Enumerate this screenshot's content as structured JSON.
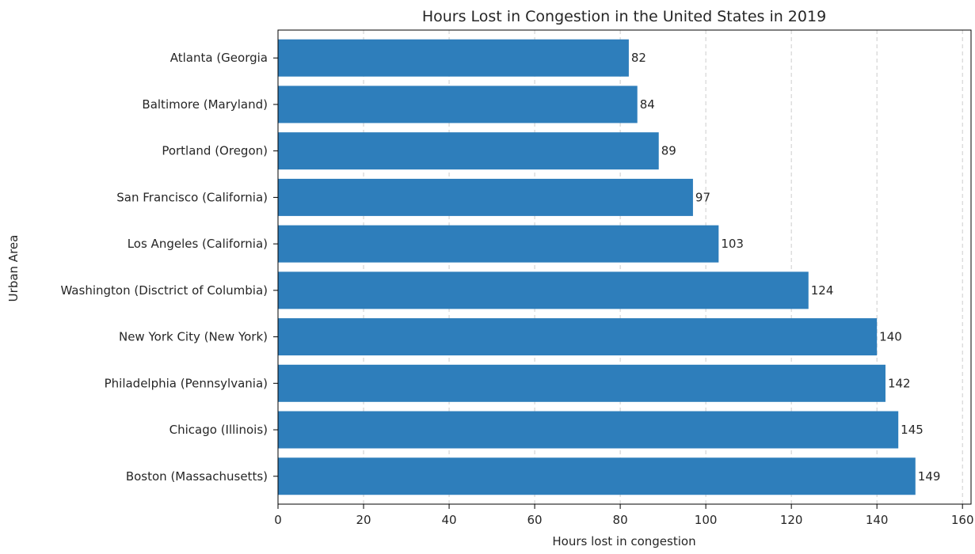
{
  "chart_data": {
    "type": "bar",
    "orientation": "horizontal",
    "title": "Hours Lost in Congestion in the United States in 2019",
    "xlabel": "Hours lost in congestion",
    "ylabel": "Urban Area",
    "categories": [
      "Atlanta (Georgia",
      "Baltimore (Maryland)",
      "Portland (Oregon)",
      "San Francisco (California)",
      "Los Angeles (California)",
      "Washington (Disctrict of Columbia)",
      "New York City (New York)",
      "Philadelphia (Pennsylvania)",
      "Chicago (Illinois)",
      "Boston (Massachusetts)"
    ],
    "values": [
      82,
      84,
      89,
      97,
      103,
      124,
      140,
      142,
      145,
      149
    ],
    "xlim": [
      0,
      162
    ],
    "xticks": [
      0,
      20,
      40,
      60,
      80,
      100,
      120,
      140,
      160
    ],
    "grid": "x-dashed",
    "bar_color": "#2e7ebb",
    "grid_color": "#cccccc"
  }
}
